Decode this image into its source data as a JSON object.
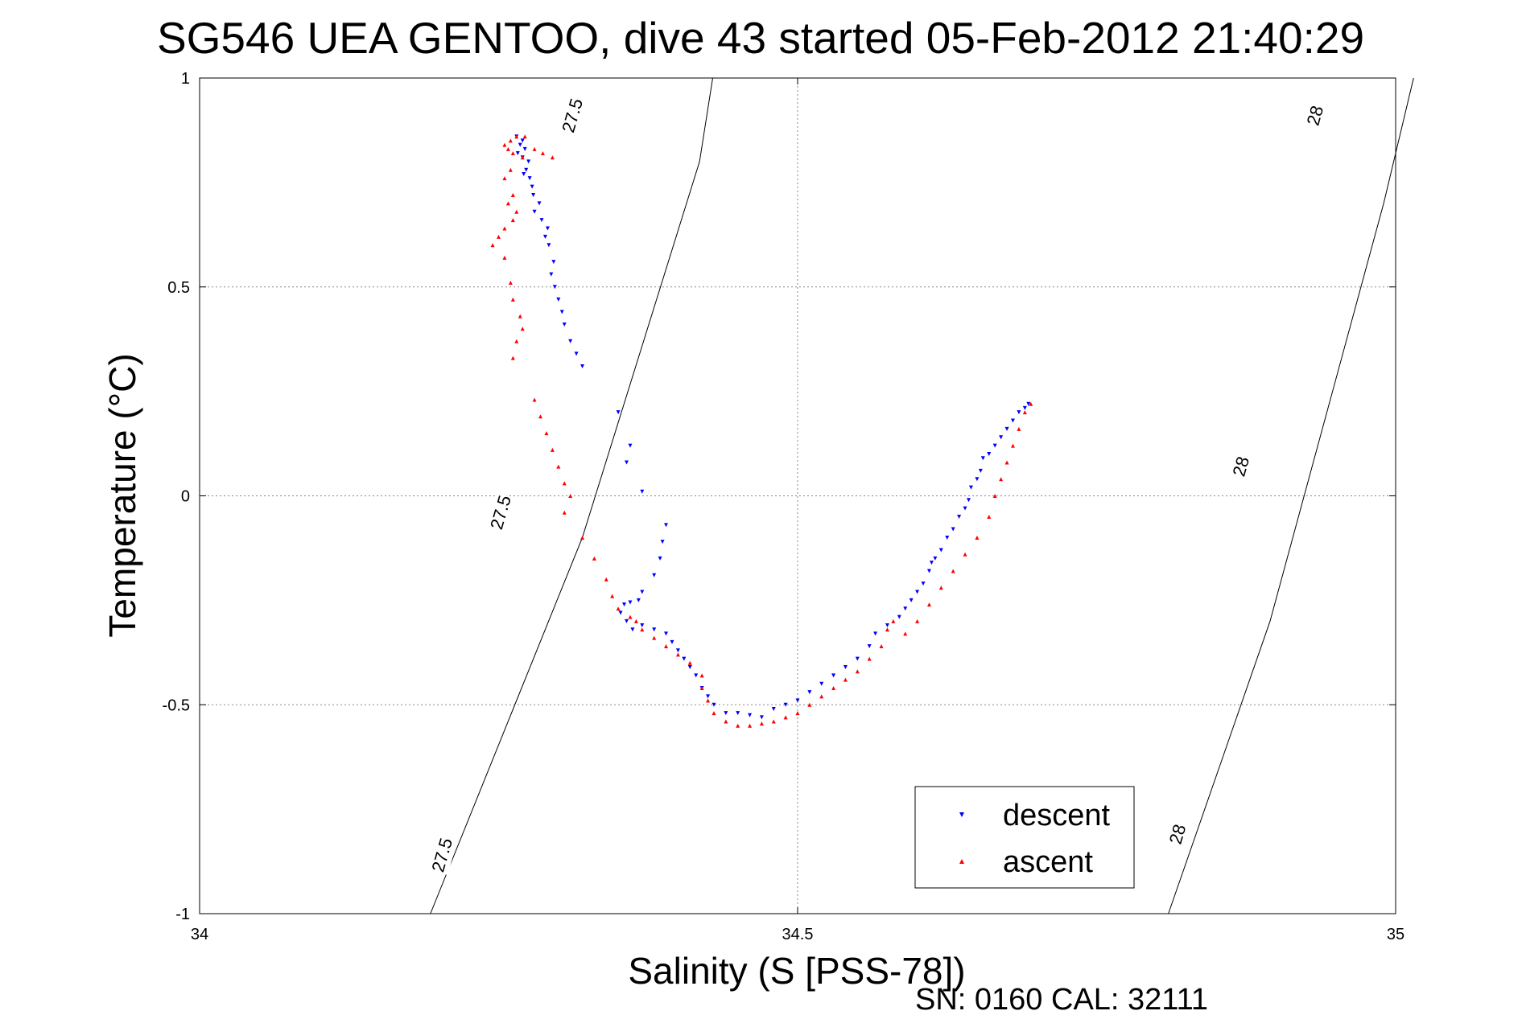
{
  "chart_data": {
    "type": "scatter",
    "title": "SG546 UEA GENTOO, dive 43 started 05-Feb-2012 21:40:29",
    "xlabel": "Salinity (S [PSS-78])",
    "ylabel": "Temperature (°C)",
    "xlim": [
      34,
      35
    ],
    "ylim": [
      -1,
      1
    ],
    "x_ticks": [
      34,
      34.5,
      35
    ],
    "x_tick_labels": [
      "34",
      "34.5",
      "35"
    ],
    "y_ticks": [
      1,
      0.5,
      0,
      -0.5,
      -1
    ],
    "y_tick_labels": [
      "1",
      "0.5",
      "0",
      "-0.5",
      "-1"
    ],
    "grid": true,
    "legend_position": "bottom-right",
    "isopycnals": [
      {
        "label": "27.5",
        "points": [
          [
            34.193,
            -1.0
          ],
          [
            34.32,
            -0.1
          ],
          [
            34.418,
            0.8
          ],
          [
            34.429,
            1.0
          ]
        ],
        "label_positions": [
          [
            34.203,
            -0.86
          ],
          [
            34.252,
            -0.04
          ],
          [
            34.312,
            0.91
          ]
        ]
      },
      {
        "label": "28",
        "points": [
          [
            34.81,
            -1.0
          ],
          [
            34.895,
            -0.3
          ],
          [
            34.99,
            0.7
          ],
          [
            35.015,
            1.0
          ]
        ],
        "label_positions": [
          [
            34.818,
            -0.81
          ],
          [
            34.871,
            0.07
          ],
          [
            34.933,
            0.91
          ]
        ]
      }
    ],
    "series": [
      {
        "name": "descent",
        "color": "#0000ff",
        "marker": "triangle-down",
        "points": [
          [
            34.265,
            0.86
          ],
          [
            34.27,
            0.85
          ],
          [
            34.268,
            0.84
          ],
          [
            34.272,
            0.83
          ],
          [
            34.266,
            0.82
          ],
          [
            34.27,
            0.81
          ],
          [
            34.275,
            0.8
          ],
          [
            34.273,
            0.78
          ],
          [
            34.271,
            0.77
          ],
          [
            34.276,
            0.76
          ],
          [
            34.278,
            0.74
          ],
          [
            34.279,
            0.72
          ],
          [
            34.284,
            0.7
          ],
          [
            34.28,
            0.68
          ],
          [
            34.286,
            0.66
          ],
          [
            34.291,
            0.64
          ],
          [
            34.289,
            0.62
          ],
          [
            34.292,
            0.6
          ],
          [
            34.296,
            0.56
          ],
          [
            34.294,
            0.53
          ],
          [
            34.297,
            0.5
          ],
          [
            34.3,
            0.47
          ],
          [
            34.303,
            0.44
          ],
          [
            34.305,
            0.41
          ],
          [
            34.31,
            0.37
          ],
          [
            34.315,
            0.34
          ],
          [
            34.32,
            0.31
          ],
          [
            34.35,
            0.2
          ],
          [
            34.36,
            0.12
          ],
          [
            34.357,
            0.08
          ],
          [
            34.37,
            0.01
          ],
          [
            34.39,
            -0.07
          ],
          [
            34.387,
            -0.11
          ],
          [
            34.385,
            -0.15
          ],
          [
            34.38,
            -0.19
          ],
          [
            34.37,
            -0.23
          ],
          [
            34.367,
            -0.25
          ],
          [
            34.36,
            -0.255
          ],
          [
            34.355,
            -0.26
          ],
          [
            34.352,
            -0.28
          ],
          [
            34.357,
            -0.3
          ],
          [
            34.362,
            -0.32
          ],
          [
            34.37,
            -0.31
          ],
          [
            34.38,
            -0.32
          ],
          [
            34.39,
            -0.33
          ],
          [
            34.395,
            -0.35
          ],
          [
            34.4,
            -0.37
          ],
          [
            34.405,
            -0.39
          ],
          [
            34.41,
            -0.41
          ],
          [
            34.415,
            -0.43
          ],
          [
            34.42,
            -0.46
          ],
          [
            34.425,
            -0.48
          ],
          [
            34.43,
            -0.5
          ],
          [
            34.44,
            -0.52
          ],
          [
            34.45,
            -0.52
          ],
          [
            34.46,
            -0.525
          ],
          [
            34.47,
            -0.53
          ],
          [
            34.48,
            -0.51
          ],
          [
            34.49,
            -0.5
          ],
          [
            34.5,
            -0.49
          ],
          [
            34.51,
            -0.47
          ],
          [
            34.52,
            -0.45
          ],
          [
            34.53,
            -0.43
          ],
          [
            34.54,
            -0.41
          ],
          [
            34.55,
            -0.39
          ],
          [
            34.56,
            -0.36
          ],
          [
            34.565,
            -0.33
          ],
          [
            34.575,
            -0.31
          ],
          [
            34.585,
            -0.29
          ],
          [
            34.59,
            -0.27
          ],
          [
            34.595,
            -0.25
          ],
          [
            34.6,
            -0.23
          ],
          [
            34.605,
            -0.21
          ],
          [
            34.61,
            -0.18
          ],
          [
            34.612,
            -0.16
          ],
          [
            34.615,
            -0.15
          ],
          [
            34.62,
            -0.13
          ],
          [
            34.625,
            -0.1
          ],
          [
            34.63,
            -0.08
          ],
          [
            34.635,
            -0.05
          ],
          [
            34.64,
            -0.03
          ],
          [
            34.643,
            -0.01
          ],
          [
            34.645,
            0.02
          ],
          [
            34.65,
            0.04
          ],
          [
            34.653,
            0.06
          ],
          [
            34.655,
            0.09
          ],
          [
            34.66,
            0.1
          ],
          [
            34.665,
            0.12
          ],
          [
            34.67,
            0.14
          ],
          [
            34.675,
            0.16
          ],
          [
            34.68,
            0.18
          ],
          [
            34.685,
            0.2
          ],
          [
            34.69,
            0.21
          ],
          [
            34.693,
            0.22
          ]
        ]
      },
      {
        "name": "ascent",
        "color": "#ff0000",
        "marker": "triangle-up",
        "points": [
          [
            34.26,
            0.85
          ],
          [
            34.265,
            0.86
          ],
          [
            34.272,
            0.86
          ],
          [
            34.255,
            0.84
          ],
          [
            34.258,
            0.83
          ],
          [
            34.262,
            0.82
          ],
          [
            34.27,
            0.81
          ],
          [
            34.28,
            0.83
          ],
          [
            34.287,
            0.82
          ],
          [
            34.295,
            0.81
          ],
          [
            34.26,
            0.78
          ],
          [
            34.255,
            0.76
          ],
          [
            34.262,
            0.72
          ],
          [
            34.258,
            0.7
          ],
          [
            34.265,
            0.68
          ],
          [
            34.262,
            0.66
          ],
          [
            34.255,
            0.64
          ],
          [
            34.25,
            0.62
          ],
          [
            34.245,
            0.6
          ],
          [
            34.255,
            0.57
          ],
          [
            34.26,
            0.51
          ],
          [
            34.262,
            0.47
          ],
          [
            34.268,
            0.43
          ],
          [
            34.27,
            0.4
          ],
          [
            34.265,
            0.37
          ],
          [
            34.262,
            0.33
          ],
          [
            34.28,
            0.23
          ],
          [
            34.285,
            0.19
          ],
          [
            34.29,
            0.15
          ],
          [
            34.295,
            0.11
          ],
          [
            34.3,
            0.07
          ],
          [
            34.305,
            0.03
          ],
          [
            34.31,
            0.0
          ],
          [
            34.305,
            -0.04
          ],
          [
            34.32,
            -0.1
          ],
          [
            34.33,
            -0.15
          ],
          [
            34.34,
            -0.2
          ],
          [
            34.345,
            -0.24
          ],
          [
            34.35,
            -0.27
          ],
          [
            34.36,
            -0.29
          ],
          [
            34.365,
            -0.3
          ],
          [
            34.37,
            -0.32
          ],
          [
            34.38,
            -0.34
          ],
          [
            34.39,
            -0.36
          ],
          [
            34.4,
            -0.38
          ],
          [
            34.41,
            -0.4
          ],
          [
            34.42,
            -0.43
          ],
          [
            34.42,
            -0.46
          ],
          [
            34.425,
            -0.49
          ],
          [
            34.43,
            -0.52
          ],
          [
            34.44,
            -0.54
          ],
          [
            34.45,
            -0.55
          ],
          [
            34.46,
            -0.55
          ],
          [
            34.47,
            -0.545
          ],
          [
            34.48,
            -0.54
          ],
          [
            34.49,
            -0.53
          ],
          [
            34.5,
            -0.52
          ],
          [
            34.51,
            -0.5
          ],
          [
            34.52,
            -0.48
          ],
          [
            34.53,
            -0.46
          ],
          [
            34.54,
            -0.44
          ],
          [
            34.55,
            -0.42
          ],
          [
            34.56,
            -0.39
          ],
          [
            34.57,
            -0.36
          ],
          [
            34.575,
            -0.32
          ],
          [
            34.58,
            -0.3
          ],
          [
            34.59,
            -0.33
          ],
          [
            34.6,
            -0.3
          ],
          [
            34.61,
            -0.26
          ],
          [
            34.62,
            -0.22
          ],
          [
            34.63,
            -0.18
          ],
          [
            34.64,
            -0.14
          ],
          [
            34.65,
            -0.1
          ],
          [
            34.66,
            -0.05
          ],
          [
            34.665,
            0.0
          ],
          [
            34.67,
            0.04
          ],
          [
            34.675,
            0.08
          ],
          [
            34.68,
            0.12
          ],
          [
            34.685,
            0.16
          ],
          [
            34.69,
            0.2
          ],
          [
            34.695,
            0.22
          ]
        ]
      }
    ]
  },
  "footer": {
    "sn_cal": "SN: 0160  CAL: 32111"
  }
}
